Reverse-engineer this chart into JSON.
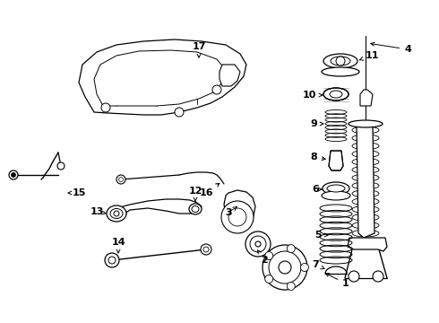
{
  "background_color": "#ffffff",
  "line_color": "#000000",
  "figsize": [
    4.9,
    3.6
  ],
  "dpi": 100,
  "label_fontsize": 8,
  "label_fontweight": "bold"
}
